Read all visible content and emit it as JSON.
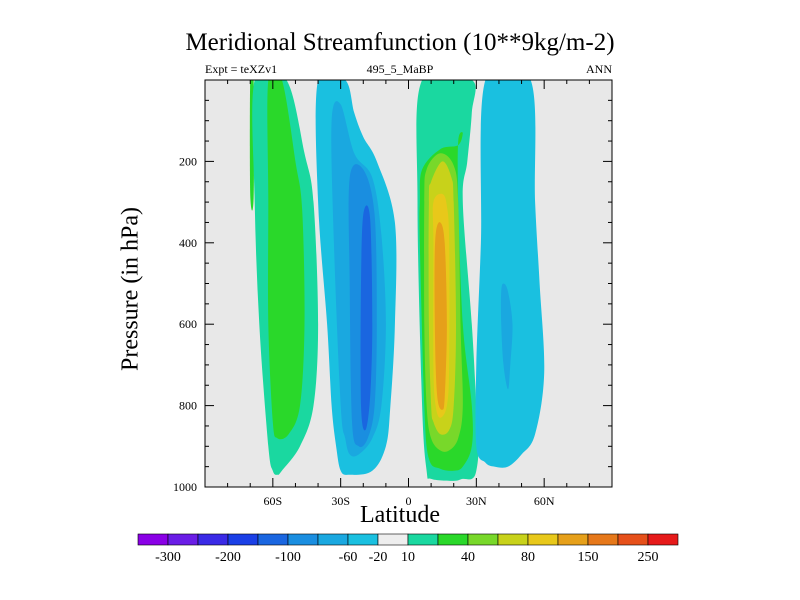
{
  "chart_data": {
    "type": "contour",
    "title": "Meridional Streamfunction (10**9kg/m-2)",
    "subtitle_left": "Expt = teXZv1",
    "subtitle_center": "495_5_MaBP",
    "subtitle_right": "ANN",
    "xlabel": "Latitude",
    "ylabel": "Pressure (in hPa)",
    "xlim": [
      -90,
      90
    ],
    "ylim": [
      1000,
      0
    ],
    "x_ticks": [
      {
        "label": "60S",
        "value": -60
      },
      {
        "label": "30S",
        "value": -30
      },
      {
        "label": "0",
        "value": 0
      },
      {
        "label": "30N",
        "value": 30
      },
      {
        "label": "60N",
        "value": 60
      }
    ],
    "y_ticks": [
      {
        "label": "200",
        "value": 200
      },
      {
        "label": "400",
        "value": 400
      },
      {
        "label": "600",
        "value": 600
      },
      {
        "label": "800",
        "value": 800
      },
      {
        "label": "1000",
        "value": 1000
      }
    ],
    "colorbar": {
      "colors": [
        "#8a00e6",
        "#6a1de6",
        "#3a2ae6",
        "#1a3fe6",
        "#1a66e0",
        "#1a8ee0",
        "#1aa8e0",
        "#1ac0e0",
        "#eeeeee",
        "#1ad8a0",
        "#2ad82a",
        "#78d82a",
        "#c8d21a",
        "#e8c81a",
        "#e6a01a",
        "#e6781a",
        "#e6501a",
        "#e61a1a"
      ],
      "labels": [
        {
          "text": "-300",
          "boundary": 1
        },
        {
          "text": "-200",
          "boundary": 3
        },
        {
          "text": "-100",
          "boundary": 5
        },
        {
          "text": "-60",
          "boundary": 7
        },
        {
          "text": "-20",
          "boundary": 8
        },
        {
          "text": "10",
          "boundary": 9
        },
        {
          "text": "40",
          "boundary": 11
        },
        {
          "text": "80",
          "boundary": 13
        },
        {
          "text": "150",
          "boundary": 15
        },
        {
          "text": "250",
          "boundary": 17
        }
      ]
    },
    "cells": [
      {
        "name": "sh-high-thin-cell",
        "level": 1,
        "color": "#2ad82a",
        "x": [
          -70,
          -68.5,
          -68.5,
          -70
        ],
        "p": [
          0,
          0,
          290,
          280
        ]
      },
      {
        "name": "sh-ferrel-cell",
        "level": 1,
        "color": "#1ad8a0",
        "x": [
          -68,
          -54,
          -46,
          -42,
          -40,
          -42,
          -48,
          -56,
          -58,
          -60,
          -62,
          -66,
          -68
        ],
        "p": [
          0,
          0,
          180,
          300,
          600,
          800,
          900,
          960,
          970,
          960,
          900,
          600,
          300
        ]
      },
      {
        "name": "sh-ferrel-cell",
        "level": 2,
        "color": "#2ad82a",
        "x": [
          -62,
          -56,
          -50,
          -47,
          -46,
          -48,
          -53,
          -58,
          -60,
          -62,
          -62
        ],
        "p": [
          0,
          0,
          200,
          320,
          600,
          800,
          870,
          880,
          840,
          600,
          300
        ]
      },
      {
        "name": "sh-hadley-cell",
        "level": 1,
        "color": "#1ac0e0",
        "x": [
          -40,
          -28,
          -24,
          -20,
          -14,
          -6,
          -6,
          -8,
          -10,
          -16,
          -26,
          -30,
          -32,
          -34,
          -36,
          -40
        ],
        "p": [
          0,
          0,
          80,
          140,
          200,
          350,
          600,
          800,
          900,
          960,
          970,
          960,
          900,
          800,
          600,
          300
        ]
      },
      {
        "name": "sh-hadley-cell",
        "level": 2,
        "color": "#1aa8e0",
        "x": [
          -34,
          -30,
          -24,
          -16,
          -12,
          -10,
          -12,
          -16,
          -22,
          -26,
          -28,
          -30,
          -33
        ],
        "p": [
          100,
          60,
          180,
          240,
          380,
          600,
          800,
          880,
          920,
          920,
          880,
          800,
          400
        ]
      },
      {
        "name": "sh-hadley-cell",
        "level": 3,
        "color": "#1a8ee0",
        "x": [
          -26,
          -20,
          -15,
          -14,
          -15,
          -18,
          -22,
          -25,
          -26
        ],
        "p": [
          240,
          220,
          330,
          600,
          800,
          880,
          900,
          840,
          500
        ]
      },
      {
        "name": "sh-hadley-cell",
        "level": 4,
        "color": "#1a66e0",
        "x": [
          -20,
          -17,
          -16,
          -17,
          -19,
          -21,
          -21
        ],
        "p": [
          330,
          340,
          600,
          780,
          860,
          800,
          500
        ]
      },
      {
        "name": "nh-hadley-cell",
        "level": 1,
        "color": "#1ad8a0",
        "x": [
          6,
          28,
          28,
          26,
          24,
          28,
          30,
          31,
          30,
          28,
          24,
          20,
          10,
          8,
          6,
          4
        ],
        "p": [
          0,
          0,
          80,
          200,
          300,
          600,
          800,
          900,
          960,
          980,
          980,
          985,
          980,
          960,
          800,
          300
        ]
      },
      {
        "name": "nh-hadley-cell",
        "level": 2,
        "color": "#2ad82a",
        "x": [
          6,
          14,
          22,
          24,
          22,
          22,
          24,
          28,
          28,
          24,
          20,
          14,
          9,
          7,
          5,
          5
        ],
        "p": [
          220,
          170,
          160,
          130,
          150,
          300,
          600,
          800,
          900,
          950,
          960,
          955,
          930,
          800,
          400,
          300
        ]
      },
      {
        "name": "nh-hadley-cell",
        "level": 3,
        "color": "#78d82a",
        "x": [
          8,
          14,
          20,
          22,
          23,
          24,
          22,
          18,
          14,
          10,
          8,
          7,
          7
        ],
        "p": [
          220,
          180,
          210,
          300,
          600,
          800,
          880,
          910,
          910,
          880,
          800,
          600,
          300
        ]
      },
      {
        "name": "nh-hadley-cell",
        "level": 4,
        "color": "#c8d21a",
        "x": [
          10,
          15,
          19,
          20,
          21,
          20,
          18,
          14,
          11,
          10,
          9,
          9
        ],
        "p": [
          250,
          200,
          240,
          300,
          600,
          800,
          860,
          870,
          840,
          800,
          600,
          300
        ]
      },
      {
        "name": "nh-hadley-cell",
        "level": 5,
        "color": "#e8c81a",
        "x": [
          11,
          15,
          17,
          18,
          18,
          17,
          14,
          12,
          11,
          11
        ],
        "p": [
          300,
          280,
          310,
          400,
          700,
          800,
          830,
          800,
          700,
          400
        ]
      },
      {
        "name": "nh-hadley-cell",
        "level": 6,
        "color": "#e6a01a",
        "x": [
          12,
          14,
          16,
          17,
          16,
          15,
          13,
          12,
          11.5
        ],
        "p": [
          380,
          350,
          400,
          600,
          780,
          810,
          790,
          700,
          500
        ]
      },
      {
        "name": "nh-ferrel-cell",
        "level": 1,
        "color": "#1ac0e0",
        "x": [
          34,
          54,
          56,
          58,
          60,
          56,
          50,
          44,
          38,
          34,
          30,
          30,
          32
        ],
        "p": [
          0,
          0,
          300,
          500,
          720,
          870,
          920,
          950,
          950,
          940,
          900,
          700,
          400
        ]
      },
      {
        "name": "nh-ferrel-cell",
        "level": 2,
        "color": "#1aa8e0",
        "x": [
          42,
          44,
          46,
          45,
          44,
          42,
          41,
          41
        ],
        "p": [
          500,
          520,
          600,
          700,
          760,
          700,
          600,
          520
        ]
      }
    ]
  }
}
